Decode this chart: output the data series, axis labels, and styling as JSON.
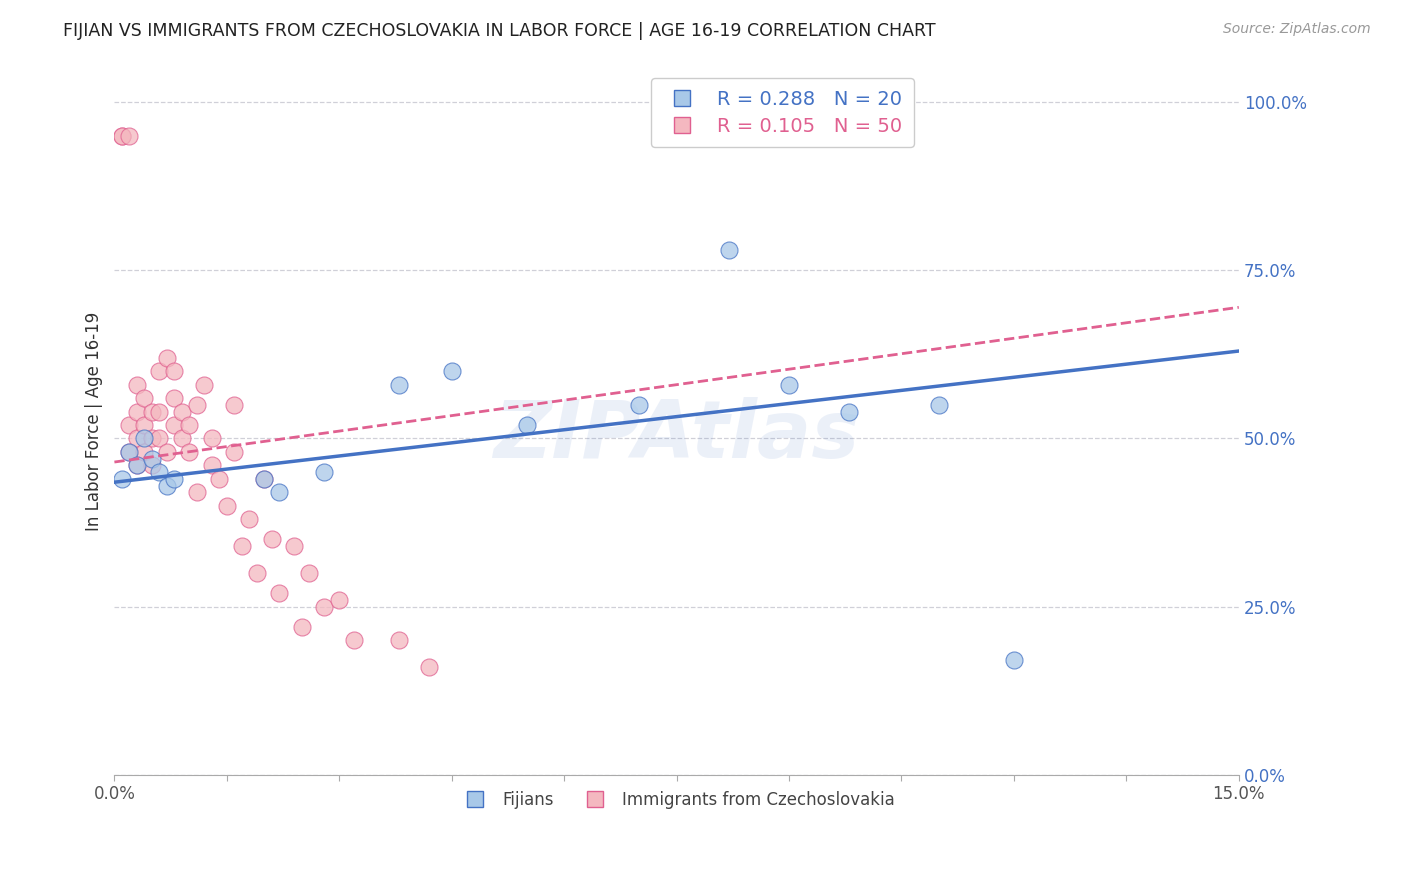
{
  "title": "FIJIAN VS IMMIGRANTS FROM CZECHOSLOVAKIA IN LABOR FORCE | AGE 16-19 CORRELATION CHART",
  "source": "Source: ZipAtlas.com",
  "ylabel": "In Labor Force | Age 16-19",
  "xlim": [
    0.0,
    0.15
  ],
  "ylim": [
    0.0,
    1.05
  ],
  "xtick_positions": [
    0.0,
    0.015,
    0.03,
    0.045,
    0.06,
    0.075,
    0.09,
    0.105,
    0.12,
    0.135,
    0.15
  ],
  "xtick_labels_show": {
    "0.0": "0.0%",
    "0.15": "15.0%"
  },
  "yticks_right": [
    0.0,
    0.25,
    0.5,
    0.75,
    1.0
  ],
  "ytick_labels_right": [
    "0.0%",
    "25.0%",
    "50.0%",
    "75.0%",
    "100.0%"
  ],
  "fijian_color": "#a8c8e8",
  "czech_color": "#f4b8c0",
  "fijian_edge_color": "#4472c4",
  "czech_edge_color": "#e06090",
  "fijian_line_color": "#4472c4",
  "czech_line_color": "#e06090",
  "fijian_R": 0.288,
  "fijian_N": 20,
  "czech_R": 0.105,
  "czech_N": 50,
  "watermark": "ZIPAtlas",
  "grid_color": "#d0d0d8",
  "background_color": "#ffffff",
  "fijian_x": [
    0.001,
    0.002,
    0.003,
    0.004,
    0.005,
    0.006,
    0.007,
    0.008,
    0.02,
    0.022,
    0.028,
    0.038,
    0.045,
    0.055,
    0.07,
    0.082,
    0.09,
    0.098,
    0.11,
    0.12
  ],
  "fijian_y": [
    0.44,
    0.48,
    0.46,
    0.5,
    0.47,
    0.45,
    0.43,
    0.44,
    0.44,
    0.42,
    0.45,
    0.58,
    0.6,
    0.52,
    0.55,
    0.78,
    0.58,
    0.54,
    0.55,
    0.17
  ],
  "czech_x": [
    0.001,
    0.001,
    0.002,
    0.002,
    0.002,
    0.003,
    0.003,
    0.003,
    0.003,
    0.004,
    0.004,
    0.004,
    0.005,
    0.005,
    0.005,
    0.006,
    0.006,
    0.006,
    0.007,
    0.007,
    0.008,
    0.008,
    0.008,
    0.009,
    0.009,
    0.01,
    0.01,
    0.011,
    0.011,
    0.012,
    0.013,
    0.013,
    0.014,
    0.015,
    0.016,
    0.016,
    0.017,
    0.018,
    0.019,
    0.02,
    0.021,
    0.022,
    0.024,
    0.025,
    0.026,
    0.028,
    0.03,
    0.032,
    0.038,
    0.042
  ],
  "czech_y": [
    0.95,
    0.95,
    0.95,
    0.48,
    0.52,
    0.46,
    0.5,
    0.54,
    0.58,
    0.48,
    0.52,
    0.56,
    0.5,
    0.46,
    0.54,
    0.5,
    0.54,
    0.6,
    0.62,
    0.48,
    0.52,
    0.56,
    0.6,
    0.5,
    0.54,
    0.52,
    0.48,
    0.55,
    0.42,
    0.58,
    0.46,
    0.5,
    0.44,
    0.4,
    0.55,
    0.48,
    0.34,
    0.38,
    0.3,
    0.44,
    0.35,
    0.27,
    0.34,
    0.22,
    0.3,
    0.25,
    0.26,
    0.2,
    0.2,
    0.16
  ],
  "fijian_trend": [
    0.0,
    0.15
  ],
  "fijian_trend_y": [
    0.435,
    0.63
  ],
  "czech_trend": [
    0.0,
    0.15
  ],
  "czech_trend_y": [
    0.465,
    0.695
  ]
}
